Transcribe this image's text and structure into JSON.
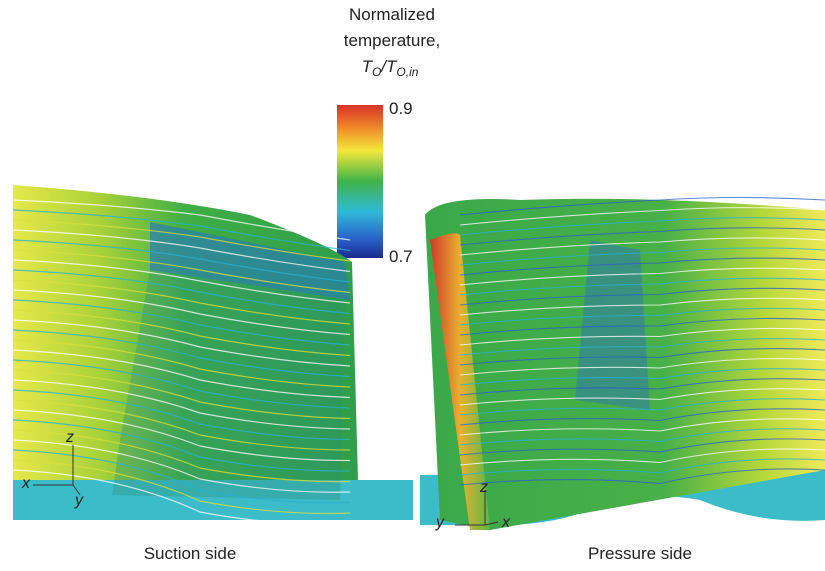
{
  "colorbar": {
    "title": [
      "Normalized",
      "temperature,"
    ],
    "symbol": [
      "T",
      "O",
      "/",
      "T",
      "O,in"
    ],
    "ticks": [
      0.9,
      0.7
    ]
  },
  "left_view": {
    "axes": [
      "z",
      "x",
      "y"
    ],
    "caption": "Suction side"
  },
  "right_view": {
    "axes": [
      "z",
      "y",
      "x"
    ],
    "caption": "Pressure side"
  }
}
